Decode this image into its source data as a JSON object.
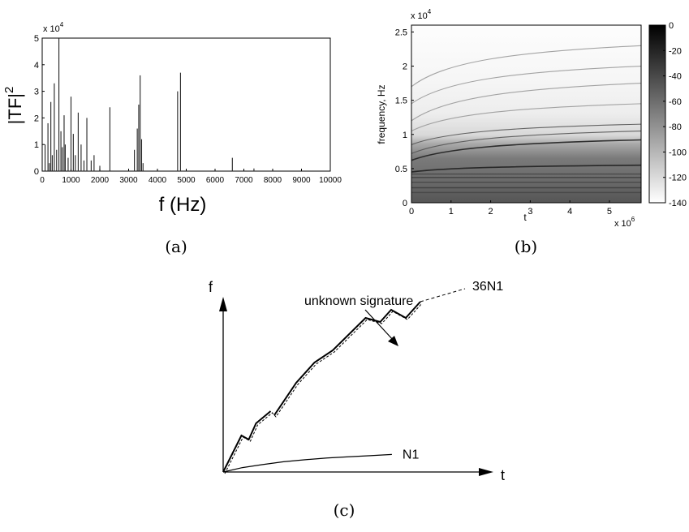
{
  "panels": {
    "a": {
      "caption": "(a)",
      "y_exponent": "x 10",
      "y_exponent_power": "4",
      "xlabel": "f (Hz)",
      "ylabel": "|TF|",
      "ylabel_power": "2"
    },
    "b": {
      "caption": "(b)",
      "y_exponent": "x 10",
      "y_exponent_power": "4",
      "x_exponent": "x 10",
      "x_exponent_power": "6",
      "xlabel": "t",
      "ylabel": "frequency, Hz"
    },
    "c": {
      "caption": "(c)",
      "xlabel": "t",
      "ylabel": "f",
      "annotation": "unknown signature"
    }
  },
  "chart_data": [
    {
      "type": "bar",
      "xlabel": "f (Hz)",
      "ylabel": "|TF|^2",
      "xlim": [
        0,
        10000
      ],
      "ylim": [
        0,
        5
      ],
      "y_scale_factor": "x 10^4",
      "xticks": [
        0,
        1000,
        2000,
        3000,
        4000,
        5000,
        6000,
        7000,
        8000,
        9000,
        10000
      ],
      "yticks": [
        0,
        1,
        2,
        3,
        4,
        5
      ],
      "x": [
        100,
        200,
        250,
        300,
        350,
        420,
        500,
        580,
        650,
        700,
        760,
        800,
        900,
        1000,
        1080,
        1150,
        1250,
        1350,
        1450,
        1550,
        1700,
        1800,
        2000,
        2350,
        3200,
        3300,
        3350,
        3400,
        3450,
        3500,
        4700,
        4800,
        6600,
        7350
      ],
      "values": [
        1.0,
        1.8,
        0.3,
        2.6,
        0.6,
        3.3,
        0.8,
        5.0,
        1.5,
        0.9,
        2.1,
        1.0,
        0.5,
        2.8,
        1.4,
        0.6,
        2.2,
        1.0,
        0.4,
        2.0,
        0.4,
        0.6,
        0.2,
        2.4,
        0.8,
        1.6,
        2.5,
        3.6,
        1.2,
        0.3,
        3.0,
        3.7,
        0.5,
        0.1
      ]
    },
    {
      "type": "heatmap",
      "xlabel": "t",
      "ylabel": "frequency, Hz",
      "xlim": [
        0,
        5.8
      ],
      "ylim": [
        0,
        2.6
      ],
      "x_scale_factor": "x 10^6",
      "y_scale_factor": "x 10^4",
      "xticks": [
        0,
        1,
        2,
        3,
        4,
        5
      ],
      "yticks": [
        0,
        0.5,
        1,
        1.5,
        2,
        2.5
      ],
      "colorbar_ticks": [
        0,
        -20,
        -40,
        -60,
        -80,
        -100,
        -120,
        -140
      ],
      "colorbar_range": [
        -140,
        0
      ],
      "colormap": "grayscale (white = -140, black = 0)",
      "ridge_lines_khz_at_t0_and_tend": [
        [
          0.45,
          0.55
        ],
        [
          0.62,
          0.92
        ],
        [
          0.72,
          1.05
        ],
        [
          0.85,
          1.15
        ],
        [
          1.05,
          1.45
        ],
        [
          1.2,
          1.75
        ],
        [
          1.45,
          2.0
        ],
        [
          1.7,
          2.3
        ]
      ]
    },
    {
      "type": "line",
      "xlabel": "t",
      "ylabel": "f",
      "series": [
        {
          "name": "36N1",
          "style": "solid thick + dashed continuation",
          "x": [
            0,
            0.5,
            0.7,
            0.9,
            1.3,
            1.4,
            2.0,
            2.5,
            3.0,
            3.9,
            4.3,
            4.6,
            5.0,
            5.4
          ],
          "y": [
            0,
            0.9,
            0.8,
            1.2,
            1.5,
            1.4,
            2.2,
            2.7,
            3.0,
            3.8,
            3.7,
            4.0,
            3.8,
            4.2
          ]
        },
        {
          "name": "N1",
          "style": "solid thin",
          "x": [
            0,
            0.8,
            1.6,
            2.5,
            3.4,
            4.3,
            5.2,
            6.1,
            7.0
          ],
          "y": [
            0,
            0.15,
            0.25,
            0.35,
            0.42,
            0.48,
            0.52,
            0.56,
            0.6
          ]
        }
      ]
    }
  ]
}
